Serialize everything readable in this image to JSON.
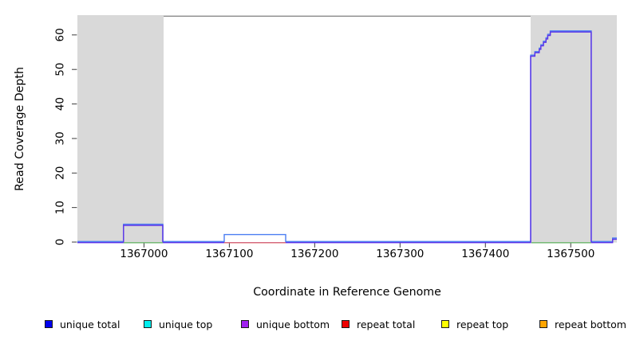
{
  "chart_data": {
    "type": "line",
    "title": "",
    "xlabel": "Coordinate in Reference Genome",
    "ylabel": "Read Coverage Depth",
    "xlim": [
      1366922,
      1367554
    ],
    "ylim": [
      0,
      65.5
    ],
    "xticks": [
      {
        "value": 1367000,
        "label": "1367000"
      },
      {
        "value": 1367100,
        "label": "1367100"
      },
      {
        "value": 1367200,
        "label": "1367200"
      },
      {
        "value": 1367300,
        "label": "1367300"
      },
      {
        "value": 1367400,
        "label": "1367400"
      },
      {
        "value": 1367500,
        "label": "1367500"
      }
    ],
    "yticks": [
      {
        "value": 0,
        "label": "0"
      },
      {
        "value": 10,
        "label": "10"
      },
      {
        "value": 20,
        "label": "20"
      },
      {
        "value": 30,
        "label": "30"
      },
      {
        "value": 40,
        "label": "40"
      },
      {
        "value": 50,
        "label": "50"
      },
      {
        "value": 60,
        "label": "60"
      }
    ],
    "grid": false,
    "shaded_regions": [
      {
        "x1": 1366922,
        "x2": 1367023,
        "color": "#d9d9d9",
        "meaning": "repeat region shading"
      },
      {
        "x1": 1367453,
        "x2": 1367554,
        "color": "#d9d9d9",
        "meaning": "repeat region shading"
      }
    ],
    "top_border_color": "#8a8a8a",
    "series": [
      {
        "id": "unique-total",
        "name": "unique total",
        "color": "#4b7ef2",
        "points": [
          [
            1366922,
            0
          ],
          [
            1366976,
            0
          ],
          [
            1366976,
            5
          ],
          [
            1367022,
            5
          ],
          [
            1367022,
            0
          ],
          [
            1367094,
            0
          ],
          [
            1367094,
            2
          ],
          [
            1367166,
            2
          ],
          [
            1367166,
            0
          ],
          [
            1367453,
            0
          ],
          [
            1367453,
            54
          ],
          [
            1367458,
            54
          ],
          [
            1367458,
            55
          ],
          [
            1367463,
            55
          ],
          [
            1367463,
            56
          ],
          [
            1367465,
            56
          ],
          [
            1367465,
            57
          ],
          [
            1367468,
            57
          ],
          [
            1367468,
            58
          ],
          [
            1367471,
            58
          ],
          [
            1367471,
            59
          ],
          [
            1367473,
            59
          ],
          [
            1367473,
            60
          ],
          [
            1367476,
            60
          ],
          [
            1367476,
            61
          ],
          [
            1367524,
            61
          ],
          [
            1367524,
            0
          ],
          [
            1367549,
            0
          ],
          [
            1367549,
            1
          ],
          [
            1367554,
            1
          ]
        ]
      },
      {
        "id": "unique-bottom",
        "name": "unique bottom",
        "color": "#5c33e8",
        "points": [
          [
            1366922,
            0
          ],
          [
            1366976,
            0
          ],
          [
            1366976,
            5
          ],
          [
            1367022,
            5
          ],
          [
            1367022,
            0
          ],
          [
            1367453,
            0
          ],
          [
            1367453,
            54
          ],
          [
            1367458,
            54
          ],
          [
            1367458,
            55
          ],
          [
            1367463,
            55
          ],
          [
            1367463,
            56
          ],
          [
            1367465,
            56
          ],
          [
            1367465,
            57
          ],
          [
            1367468,
            57
          ],
          [
            1367468,
            58
          ],
          [
            1367471,
            58
          ],
          [
            1367471,
            59
          ],
          [
            1367473,
            59
          ],
          [
            1367473,
            60
          ],
          [
            1367476,
            60
          ],
          [
            1367476,
            61
          ],
          [
            1367524,
            61
          ],
          [
            1367524,
            0
          ],
          [
            1367549,
            0
          ],
          [
            1367549,
            1
          ],
          [
            1367554,
            1
          ]
        ]
      },
      {
        "id": "baseline-marker-green-1",
        "name": "baseline marker",
        "color": "#69b469",
        "points": [
          [
            1366976,
            0
          ],
          [
            1367022,
            0
          ]
        ]
      },
      {
        "id": "baseline-marker-green-2",
        "name": "baseline marker",
        "color": "#69b469",
        "points": [
          [
            1367454,
            0
          ],
          [
            1367524,
            0
          ]
        ]
      },
      {
        "id": "repeat-total",
        "name": "repeat total",
        "color": "#e57070",
        "points": [
          [
            1367094,
            0
          ],
          [
            1367166,
            0
          ]
        ]
      }
    ]
  },
  "legend": {
    "items": [
      {
        "id": "unique-total",
        "label": "unique total",
        "color": "#0000ee"
      },
      {
        "id": "unique-top",
        "label": "unique top",
        "color": "#00eeee"
      },
      {
        "id": "unique-bottom",
        "label": "unique bottom",
        "color": "#a020f0"
      },
      {
        "id": "repeat-total",
        "label": "repeat total",
        "color": "#ee0000"
      },
      {
        "id": "repeat-top",
        "label": "repeat top",
        "color": "#ffff00"
      },
      {
        "id": "repeat-bottom",
        "label": "repeat bottom",
        "color": "#ffa500"
      }
    ]
  }
}
